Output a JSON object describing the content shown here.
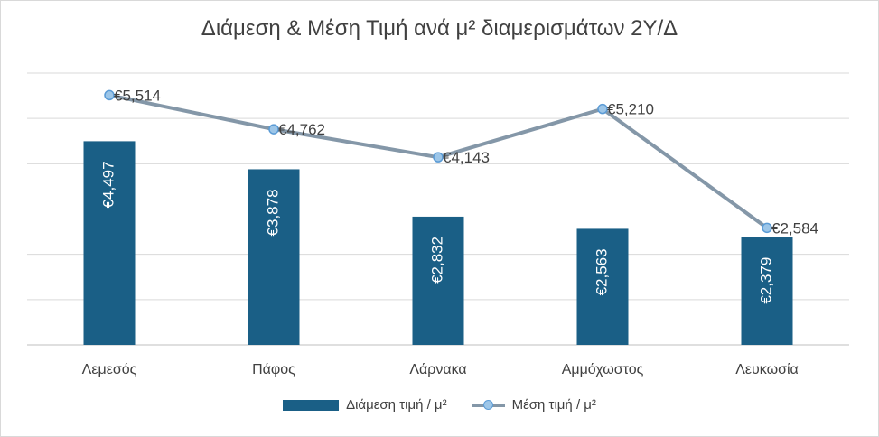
{
  "chart_data": {
    "type": "bar",
    "title": "Διάμεση & Μέση Τιμή ανά μ² διαμερισμάτων 2Υ/Δ",
    "categories": [
      "Λεμεσός",
      "Πάφος",
      "Λάρνακα",
      "Αμμόχωστος",
      "Λευκωσία"
    ],
    "series": [
      {
        "name": "Διάμεση τιμή / μ²",
        "type": "bar",
        "color": "#1a5f86",
        "values": [
          4497,
          3878,
          2832,
          2563,
          2379
        ],
        "labels": [
          "€4,497",
          "€3,878",
          "€2,832",
          "€2,563",
          "€2,379"
        ]
      },
      {
        "name": "Μέση τιμή / μ²",
        "type": "line",
        "color": "#8497a8",
        "marker_color": "#9dc6e8",
        "values": [
          5514,
          4762,
          4143,
          5210,
          2584
        ],
        "labels": [
          "€5,514",
          "€4,762",
          "€4,143",
          "€5,210",
          "€2,584"
        ]
      }
    ],
    "ylim": [
      0,
      6000
    ],
    "grid": true,
    "y_axis_labels_visible": false,
    "legend_position": "bottom"
  }
}
